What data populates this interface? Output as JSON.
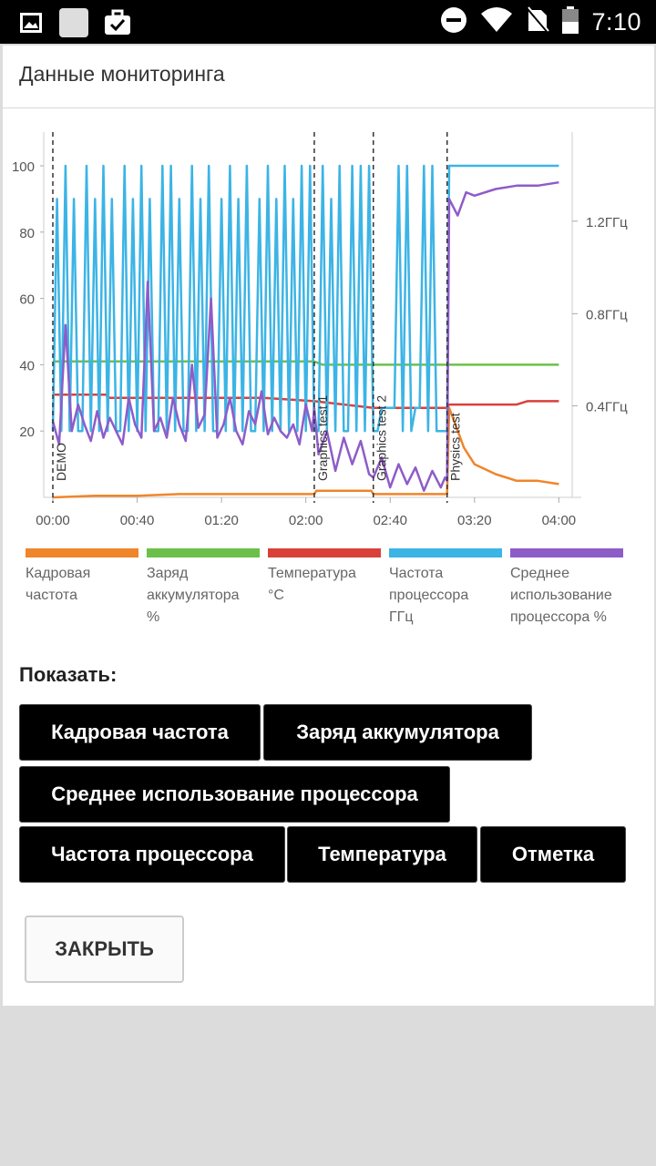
{
  "status_bar": {
    "time": "7:10",
    "icons": [
      "image-icon",
      "square-icon",
      "briefcase-check-icon",
      "do-not-disturb-icon",
      "wifi-icon",
      "no-sim-icon",
      "battery-icon"
    ]
  },
  "dialog": {
    "title": "Данные мониторинга",
    "show_label": "Показать:",
    "close_label": "ЗАКРЫТЬ"
  },
  "toggles": [
    {
      "label": "Кадровая частота"
    },
    {
      "label": "Заряд аккумулятора"
    },
    {
      "label": "Среднее использование процессора"
    },
    {
      "label": "Частота процессора"
    },
    {
      "label": "Температура"
    },
    {
      "label": "Отметка"
    }
  ],
  "legend": [
    {
      "label": "Кадровая\nчастота",
      "color": "#f0852a"
    },
    {
      "label": "Заряд\nаккумулятора\n%",
      "color": "#6cc04a"
    },
    {
      "label": "Температура\n°C",
      "color": "#d9403a"
    },
    {
      "label": "Частота\nпроцессора\nГГц",
      "color": "#3cb4e5"
    },
    {
      "label": "Среднее\nиспользование\nпроцессора %",
      "color": "#8e5cc8"
    }
  ],
  "chart_data": {
    "type": "line",
    "x_ticks": [
      "00:00",
      "00:40",
      "01:20",
      "02:00",
      "02:40",
      "03:20",
      "04:00"
    ],
    "y_left_ticks": [
      "20",
      "40",
      "60",
      "80",
      "100"
    ],
    "y_right_ticks": [
      "0.4ГГц",
      "0.8ГГц",
      "1.2ГГц"
    ],
    "ylim": [
      0,
      110
    ],
    "xlim_minutes": [
      0,
      242
    ],
    "markers": [
      {
        "label": "DEMO",
        "x": 0
      },
      {
        "label": "Graphics test 1",
        "x": 124
      },
      {
        "label": "Graphics test 2",
        "x": 152
      },
      {
        "label": "Physics test",
        "x": 187
      }
    ],
    "series": [
      {
        "name": "Кадровая частота",
        "color": "#f0852a",
        "x": [
          0,
          20,
          40,
          60,
          80,
          100,
          124,
          125,
          140,
          151,
          152,
          187,
          188,
          195,
          200,
          210,
          220,
          230,
          240
        ],
        "y": [
          0,
          0.5,
          0.5,
          1,
          1,
          1,
          1,
          2,
          2,
          2,
          1,
          1,
          27,
          15,
          10,
          7,
          5,
          5,
          4
        ]
      },
      {
        "name": "Заряд аккумулятора %",
        "color": "#6cc04a",
        "x": [
          0,
          100,
          124,
          128,
          187,
          240
        ],
        "y": [
          41,
          41,
          41,
          40,
          40,
          40
        ]
      },
      {
        "name": "Температура °C",
        "color": "#d9403a",
        "x": [
          0,
          25,
          27,
          100,
          124,
          152,
          187,
          188,
          220,
          225,
          240
        ],
        "y": [
          31,
          31,
          30,
          30,
          29,
          27,
          27,
          28,
          28,
          29,
          29
        ]
      },
      {
        "name": "Частота процессора ГГц",
        "color": "#3cb4e5",
        "x": [
          0,
          2,
          4,
          6,
          8,
          10,
          12,
          14,
          16,
          18,
          20,
          22,
          24,
          26,
          28,
          30,
          32,
          34,
          36,
          38,
          40,
          42,
          44,
          46,
          48,
          50,
          52,
          54,
          56,
          58,
          60,
          62,
          64,
          66,
          68,
          70,
          72,
          74,
          76,
          78,
          80,
          82,
          84,
          86,
          88,
          90,
          92,
          94,
          96,
          98,
          100,
          102,
          104,
          106,
          108,
          110,
          112,
          114,
          116,
          118,
          120,
          122,
          124,
          126,
          128,
          130,
          132,
          134,
          136,
          138,
          140,
          142,
          144,
          146,
          148,
          150,
          152,
          154,
          156,
          158,
          160,
          162,
          164,
          166,
          168,
          170,
          172,
          174,
          176,
          178,
          180,
          182,
          184,
          186,
          187,
          188,
          190,
          200,
          220,
          240
        ],
        "y": [
          20,
          90,
          20,
          100,
          20,
          90,
          20,
          20,
          100,
          20,
          90,
          20,
          100,
          20,
          90,
          20,
          20,
          100,
          20,
          90,
          20,
          100,
          20,
          90,
          20,
          20,
          100,
          20,
          100,
          20,
          90,
          20,
          20,
          100,
          20,
          90,
          20,
          100,
          20,
          20,
          90,
          20,
          100,
          20,
          90,
          20,
          100,
          20,
          20,
          90,
          20,
          100,
          20,
          90,
          20,
          100,
          20,
          90,
          20,
          100,
          20,
          100,
          20,
          20,
          100,
          20,
          90,
          20,
          100,
          20,
          20,
          100,
          20,
          100,
          20,
          100,
          20,
          20,
          27,
          27,
          27,
          27,
          100,
          20,
          100,
          20,
          27,
          27,
          100,
          20,
          100,
          20,
          20,
          20,
          20,
          100,
          100,
          100,
          100,
          100
        ]
      },
      {
        "name": "Среднее использование процессора %",
        "color": "#8e5cc8",
        "x": [
          0,
          3,
          6,
          9,
          12,
          15,
          18,
          21,
          24,
          27,
          30,
          33,
          36,
          39,
          42,
          45,
          48,
          51,
          54,
          57,
          60,
          63,
          66,
          69,
          72,
          75,
          78,
          81,
          84,
          87,
          90,
          93,
          96,
          99,
          102,
          105,
          108,
          111,
          114,
          117,
          120,
          123,
          124,
          126,
          130,
          134,
          138,
          142,
          146,
          150,
          152,
          156,
          160,
          164,
          168,
          172,
          176,
          180,
          184,
          186,
          187,
          188,
          192,
          196,
          200,
          210,
          220,
          230,
          240
        ],
        "y": [
          23,
          16,
          52,
          20,
          28,
          22,
          17,
          26,
          18,
          24,
          20,
          16,
          30,
          22,
          18,
          65,
          20,
          24,
          18,
          30,
          22,
          17,
          40,
          21,
          25,
          60,
          18,
          22,
          30,
          20,
          16,
          26,
          22,
          32,
          19,
          24,
          20,
          18,
          22,
          16,
          28,
          20,
          27,
          13,
          20,
          8,
          18,
          10,
          17,
          7,
          6,
          12,
          3,
          10,
          4,
          9,
          2,
          8,
          3,
          6,
          5,
          90,
          85,
          92,
          91,
          93,
          94,
          94,
          95
        ]
      }
    ]
  }
}
